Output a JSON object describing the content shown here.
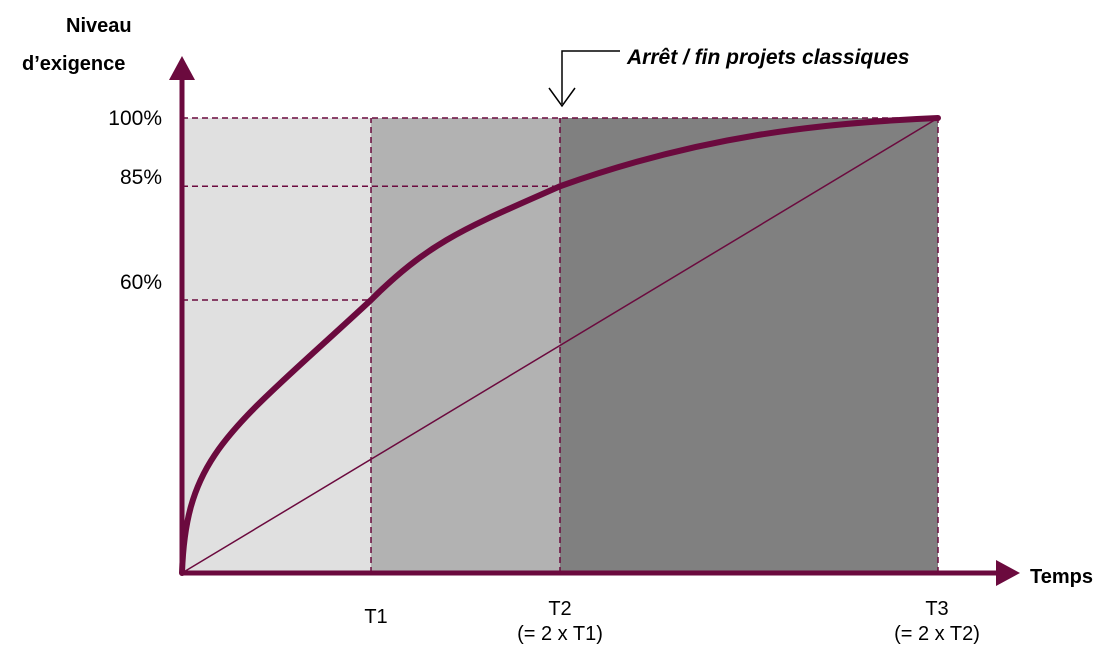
{
  "colors": {
    "axis": "#6b0a3e",
    "band_1": "#e0e0e0",
    "band_2": "#b2b2b2",
    "band_3": "#808080",
    "guide": "#6b0a3e"
  },
  "labels": {
    "y_axis_title_line1": "Niveau",
    "y_axis_title_line2": "d’exigence",
    "x_axis_title": "Temps",
    "annotation": "Arrêt / fin projets classiques"
  },
  "chart_data": {
    "type": "line",
    "y_ticks": [
      "100%",
      "85%",
      "60%"
    ],
    "x_ticks": [
      {
        "label": "T1",
        "sub": ""
      },
      {
        "label": "T2",
        "sub": "(= 2 x T1)"
      },
      {
        "label": "T3",
        "sub": "(= 2 x T2)"
      }
    ],
    "series": [
      {
        "curve": "concave",
        "points": [
          [
            0,
            0
          ],
          [
            1,
            60
          ],
          [
            2,
            85
          ],
          [
            4,
            100
          ]
        ]
      },
      {
        "curve": "linear",
        "points": [
          [
            0,
            0
          ],
          [
            4,
            100
          ]
        ]
      }
    ],
    "xlim": [
      0,
      4
    ],
    "ylim": [
      0,
      100
    ]
  }
}
